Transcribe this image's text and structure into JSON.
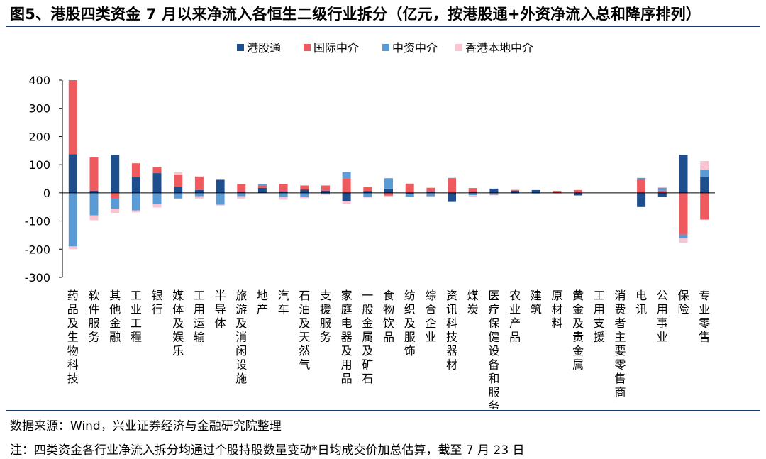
{
  "title": "图5、港股四类资金 7 月以来净流入各恒生二级行业拆分（亿元，按港股通+外资净流入总和降序排列）",
  "source": "数据来源：Wind，兴业证券经济与金融研究院整理",
  "footnote": "注：四类资金各行业净流入拆分均通过个股持股数量变动*日均成交价加总估算，截至 7 月 23 日",
  "chart_data": {
    "type": "bar",
    "stacked": true,
    "ylim": [
      -300,
      400
    ],
    "yticks": [
      400,
      300,
      200,
      100,
      0,
      -100,
      -200,
      -300
    ],
    "legend_position": "top-center",
    "categories": [
      "药品及生物科技",
      "软件服务",
      "其他金融",
      "工业工程",
      "银行",
      "媒体及娱乐",
      "工用运输",
      "半导体",
      "旅游及消闲设施",
      "地产",
      "汽车",
      "石油及天然气",
      "支援服务",
      "家庭电器及用品",
      "一般金属及矿石",
      "食物饮品",
      "纺织及服饰",
      "综合企业",
      "资讯科技器材",
      "煤炭",
      "医疗保健设备和服务",
      "农业产品",
      "建筑",
      "原材料",
      "黄金及贵金属",
      "工用支援",
      "消费者主要零售商",
      "电讯",
      "公用事业",
      "保险",
      "专业零售"
    ],
    "series": [
      {
        "name": "港股通",
        "color": "#1f4e8c",
        "values": [
          137,
          8,
          135,
          57,
          70,
          22,
          10,
          45,
          3,
          18,
          4,
          12,
          8,
          -30,
          7,
          15,
          -5,
          4,
          -32,
          3,
          15,
          8,
          10,
          2,
          -8,
          0,
          0,
          -50,
          -15,
          135,
          55
        ]
      },
      {
        "name": "国际中介",
        "color": "#ee5a5e",
        "values": [
          263,
          118,
          -18,
          48,
          22,
          43,
          48,
          2,
          28,
          9,
          28,
          14,
          18,
          52,
          15,
          -10,
          33,
          14,
          50,
          14,
          -2,
          2,
          0,
          5,
          10,
          0,
          0,
          48,
          8,
          -148,
          -95
        ]
      },
      {
        "name": "中资中介",
        "color": "#5b9bd5",
        "values": [
          -190,
          -80,
          -38,
          -62,
          -40,
          -20,
          -12,
          -42,
          -12,
          3,
          -14,
          -15,
          -5,
          22,
          -15,
          37,
          -8,
          -12,
          3,
          -8,
          -5,
          -2,
          -2,
          -1,
          -2,
          0,
          0,
          5,
          10,
          -14,
          28
        ]
      },
      {
        "name": "香港本地中介",
        "color": "#f9c3d1",
        "values": [
          -10,
          -17,
          -15,
          -7,
          -12,
          8,
          -8,
          -3,
          -8,
          0,
          -10,
          -4,
          -2,
          -8,
          -2,
          -5,
          0,
          -3,
          0,
          -5,
          -2,
          2,
          1,
          -1,
          0,
          0,
          0,
          0,
          2,
          -15,
          30
        ]
      }
    ]
  }
}
